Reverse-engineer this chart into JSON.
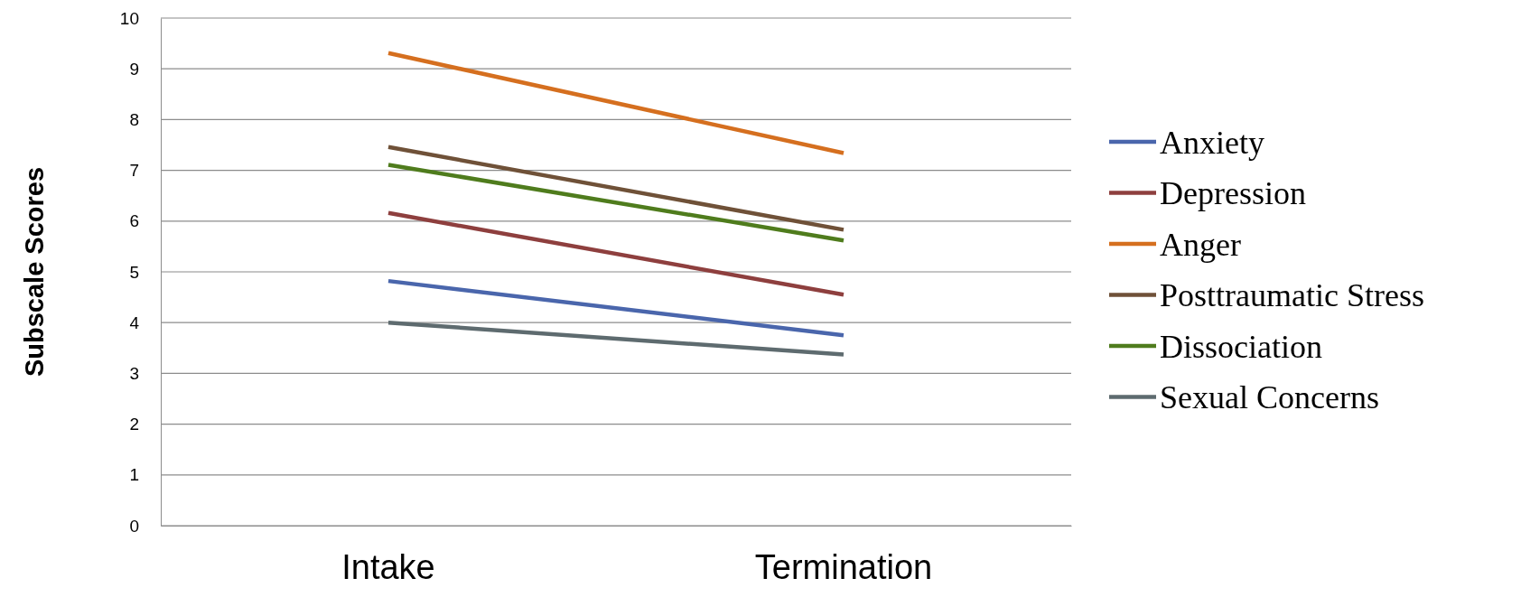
{
  "chart_data": {
    "type": "line",
    "ylabel": "Subscale Scores",
    "categories": [
      "Intake",
      "Termination"
    ],
    "ylim": [
      0,
      10
    ],
    "yticks": [
      0,
      1,
      2,
      3,
      4,
      5,
      6,
      7,
      8,
      9,
      10
    ],
    "grid": "y",
    "legend": "right",
    "marker": "none",
    "line_style": "solid",
    "series": [
      {
        "name": "Anxiety",
        "color": "#4a66ac",
        "values": [
          4.82,
          3.75
        ]
      },
      {
        "name": "Depression",
        "color": "#8e3f3e",
        "values": [
          6.16,
          4.55
        ]
      },
      {
        "name": "Anger",
        "color": "#d56f1f",
        "values": [
          9.31,
          7.34
        ]
      },
      {
        "name": "Posttraumatic Stress",
        "color": "#6f5138",
        "values": [
          7.46,
          5.83
        ]
      },
      {
        "name": "Dissociation",
        "color": "#4f7c1d",
        "values": [
          7.11,
          5.62
        ]
      },
      {
        "name": "Sexual Concerns",
        "color": "#5e6b6f",
        "values": [
          4.0,
          3.37
        ]
      }
    ]
  }
}
